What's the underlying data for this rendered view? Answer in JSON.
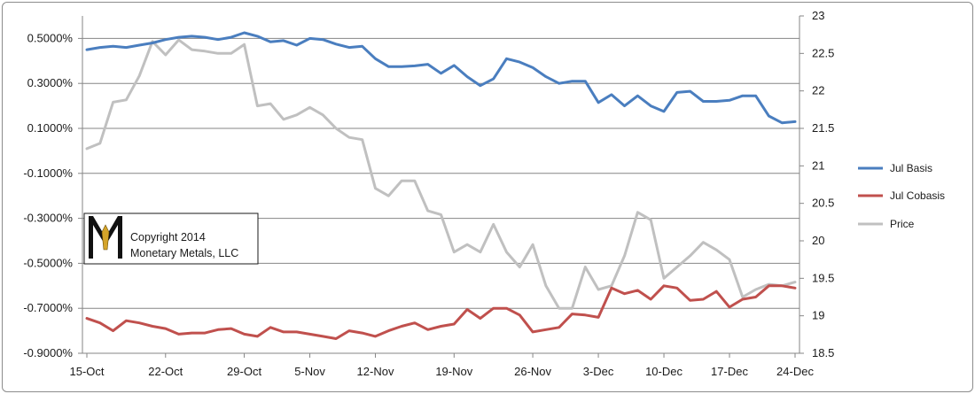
{
  "chart_data": {
    "type": "line",
    "title": "",
    "xlabel": "",
    "ylabel": "",
    "x_dates": [
      "15-Oct",
      "16-Oct",
      "17-Oct",
      "18-Oct",
      "20-Oct",
      "21-Oct",
      "22-Oct",
      "23-Oct",
      "24-Oct",
      "25-Oct",
      "27-Oct",
      "28-Oct",
      "29-Oct",
      "30-Oct",
      "31-Oct",
      "3-Nov",
      "4-Nov",
      "5-Nov",
      "6-Nov",
      "7-Nov",
      "10-Nov",
      "11-Nov",
      "12-Nov",
      "13-Nov",
      "14-Nov",
      "15-Nov",
      "17-Nov",
      "18-Nov",
      "19-Nov",
      "20-Nov",
      "21-Nov",
      "22-Nov",
      "24-Nov",
      "25-Nov",
      "26-Nov",
      "27-Nov",
      "28-Nov",
      "1-Dec",
      "2-Dec",
      "3-Dec",
      "4-Dec",
      "5-Dec",
      "8-Dec",
      "9-Dec",
      "10-Dec",
      "11-Dec",
      "12-Dec",
      "15-Dec",
      "16-Dec",
      "17-Dec",
      "18-Dec",
      "19-Dec",
      "22-Dec",
      "23-Dec",
      "24-Dec"
    ],
    "x_ticks": [
      "15-Oct",
      "22-Oct",
      "29-Oct",
      "5-Nov",
      "12-Nov",
      "19-Nov",
      "26-Nov",
      "3-Dec",
      "10-Dec",
      "17-Dec",
      "24-Dec"
    ],
    "y_left": {
      "ticks": [
        "0.5000%",
        "0.3000%",
        "0.1000%",
        "-0.1000%",
        "-0.3000%",
        "-0.5000%",
        "-0.7000%",
        "-0.9000%"
      ],
      "min": -0.9,
      "max": 0.6
    },
    "y_right": {
      "ticks": [
        "23",
        "22.5",
        "22",
        "21.5",
        "21",
        "20.5",
        "20",
        "19.5",
        "19",
        "18.5"
      ],
      "min": 18.5,
      "max": 23
    },
    "grid": true,
    "legend_position": "right",
    "series": [
      {
        "name": "Jul Basis",
        "axis": "left",
        "color": "#4a7ebf",
        "values": [
          0.45,
          0.46,
          0.465,
          0.46,
          0.47,
          0.48,
          0.495,
          0.505,
          0.51,
          0.505,
          0.495,
          0.505,
          0.525,
          0.51,
          0.485,
          0.49,
          0.47,
          0.5,
          0.495,
          0.475,
          0.46,
          0.465,
          0.41,
          0.375,
          0.375,
          0.378,
          0.385,
          0.345,
          0.38,
          0.33,
          0.29,
          0.32,
          0.41,
          0.395,
          0.37,
          0.33,
          0.3,
          0.31,
          0.31,
          0.215,
          0.25,
          0.2,
          0.245,
          0.2,
          0.175,
          0.26,
          0.265,
          0.22,
          0.22,
          0.225,
          0.245,
          0.245,
          0.155,
          0.125,
          0.13
        ]
      },
      {
        "name": "Jul Cobasis",
        "axis": "left",
        "color": "#c0504d",
        "values": [
          -0.745,
          -0.765,
          -0.8,
          -0.755,
          -0.765,
          -0.78,
          -0.79,
          -0.815,
          -0.81,
          -0.81,
          -0.795,
          -0.79,
          -0.815,
          -0.825,
          -0.785,
          -0.805,
          -0.805,
          -0.815,
          -0.825,
          -0.835,
          -0.8,
          -0.81,
          -0.825,
          -0.8,
          -0.78,
          -0.765,
          -0.795,
          -0.78,
          -0.77,
          -0.705,
          -0.745,
          -0.7,
          -0.7,
          -0.73,
          -0.805,
          -0.795,
          -0.785,
          -0.725,
          -0.73,
          -0.74,
          -0.61,
          -0.635,
          -0.62,
          -0.66,
          -0.6,
          -0.61,
          -0.665,
          -0.66,
          -0.625,
          -0.695,
          -0.66,
          -0.65,
          -0.6,
          -0.6,
          -0.61
        ]
      },
      {
        "name": "Price",
        "axis": "right",
        "color": "#c0c0c0",
        "values": [
          21.23,
          21.3,
          21.85,
          21.88,
          22.2,
          22.66,
          22.48,
          22.68,
          22.55,
          22.53,
          22.5,
          22.5,
          22.62,
          21.8,
          21.83,
          21.62,
          21.68,
          21.78,
          21.68,
          21.5,
          21.38,
          21.35,
          20.7,
          20.6,
          20.8,
          20.8,
          20.4,
          20.35,
          19.85,
          19.95,
          19.85,
          20.22,
          19.85,
          19.65,
          19.95,
          19.4,
          19.1,
          19.1,
          19.65,
          19.35,
          19.4,
          19.8,
          20.38,
          20.28,
          19.5,
          19.65,
          19.8,
          19.98,
          19.88,
          19.75,
          19.25,
          19.35,
          19.42,
          19.4,
          19.45
        ]
      }
    ]
  },
  "copyright": {
    "line1": "Copyright 2014",
    "line2": "Monetary Metals, LLC"
  }
}
